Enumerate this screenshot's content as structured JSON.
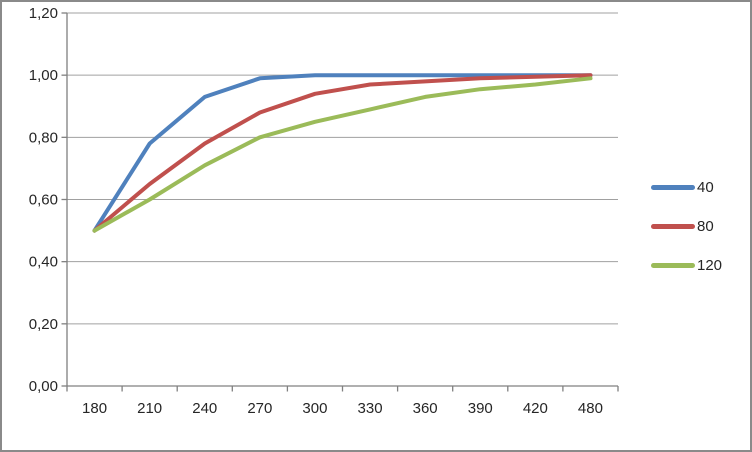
{
  "chart_data": {
    "type": "line",
    "title": "",
    "categories": [
      "180",
      "210",
      "240",
      "270",
      "300",
      "330",
      "360",
      "390",
      "420",
      "480"
    ],
    "series": [
      {
        "name": "40",
        "color": "#4F81BD",
        "values": [
          0.5,
          0.78,
          0.93,
          0.99,
          1.0,
          1.0,
          1.0,
          1.0,
          1.0,
          1.0
        ]
      },
      {
        "name": "80",
        "color": "#C0504D",
        "values": [
          0.5,
          0.65,
          0.78,
          0.88,
          0.94,
          0.97,
          0.98,
          0.99,
          0.995,
          1.0
        ]
      },
      {
        "name": "120",
        "color": "#9BBB59",
        "values": [
          0.5,
          0.6,
          0.71,
          0.8,
          0.85,
          0.89,
          0.93,
          0.955,
          0.97,
          0.99
        ]
      }
    ],
    "y_tick_labels": [
      "0,00",
      "0,20",
      "0,40",
      "0,60",
      "0,80",
      "1,00",
      "1,20"
    ],
    "ylim": [
      0,
      1.2
    ],
    "y_tick_step": 0.2,
    "grid": true,
    "legend_position": "right",
    "legend_entries": [
      "40",
      "80",
      "120"
    ],
    "xlabel": "",
    "ylabel": ""
  },
  "style": {
    "axis_color": "#808080",
    "gridline_color": "#A0A0A0",
    "label_color": "#262626",
    "background": "#FFFFFF",
    "frame_color": "#8A8A8A"
  }
}
